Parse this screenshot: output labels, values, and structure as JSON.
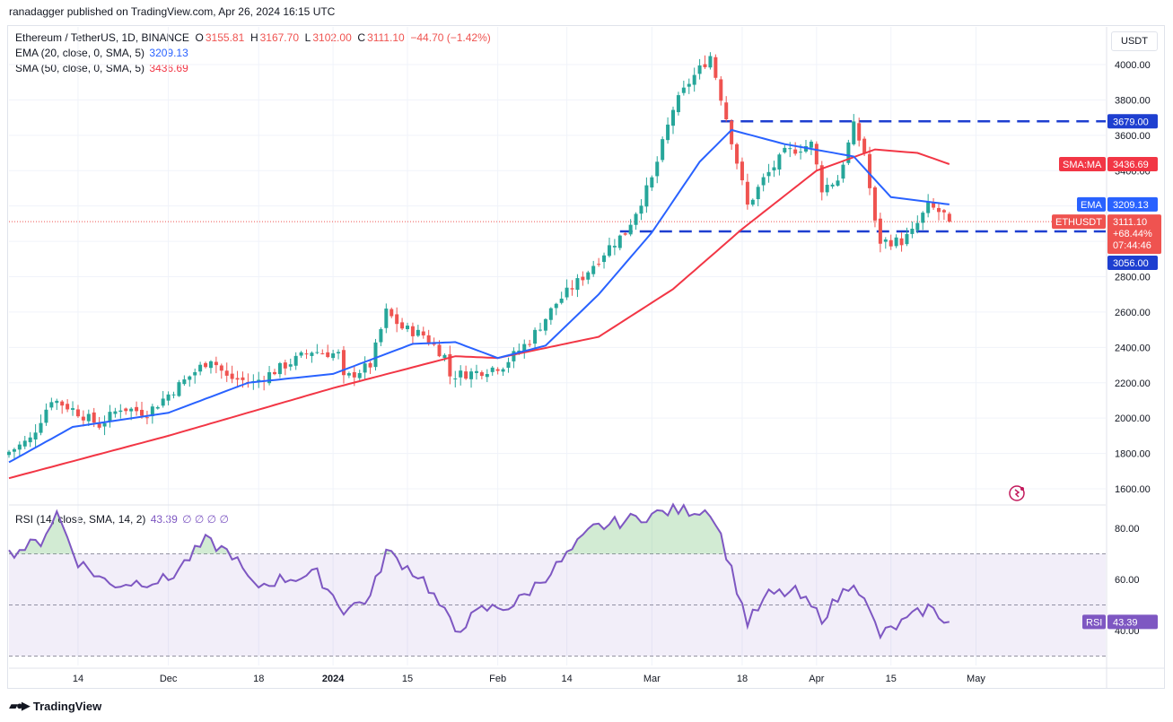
{
  "header": {
    "published": "ranadagger published on TradingView.com, Apr 26, 2024 16:15 UTC"
  },
  "symbol": {
    "name": "Ethereum / TetherUS, 1D, BINANCE",
    "o_label": "O",
    "open": "3155.81",
    "h_label": "H",
    "high": "3167.70",
    "l_label": "L",
    "low": "3102.00",
    "c_label": "C",
    "close": "3111.10",
    "change": "−44.70 (−1.42%)"
  },
  "indicators": {
    "ema_label": "EMA (20, close, 0, SMA, 5)",
    "ema_value": "3209.13",
    "sma_label": "SMA (50, close, 0, SMA, 5)",
    "sma_value": "3436.69",
    "rsi_label": "RSI (14, close, SMA, 14, 2)",
    "rsi_value": "43.39",
    "rsi_extra": "∅ ∅ ∅ ∅"
  },
  "price_axis": {
    "unit": "USDT",
    "ticks": [
      "1600.00",
      "1800.00",
      "2000.00",
      "2200.00",
      "2400.00",
      "2600.00",
      "2800.00",
      "3000.00",
      "3200.00",
      "3400.00",
      "3600.00",
      "3800.00",
      "4000.00"
    ]
  },
  "rsi_axis": {
    "ticks": [
      "40.00",
      "60.00",
      "80.00"
    ]
  },
  "x_axis": {
    "labels": [
      {
        "text": "14",
        "bold": false
      },
      {
        "text": "Dec",
        "bold": false
      },
      {
        "text": "18",
        "bold": false
      },
      {
        "text": "2024",
        "bold": true
      },
      {
        "text": "15",
        "bold": false
      },
      {
        "text": "Feb",
        "bold": false
      },
      {
        "text": "14",
        "bold": false
      },
      {
        "text": "Mar",
        "bold": false
      },
      {
        "text": "18",
        "bold": false
      },
      {
        "text": "Apr",
        "bold": false
      },
      {
        "text": "15",
        "bold": false
      },
      {
        "text": "May",
        "bold": false
      }
    ]
  },
  "tags": {
    "resistance": "3679.00",
    "support": "3056.00",
    "sma_tag_label": "SMA:MA",
    "sma_tag_value": "3436.69",
    "ema_tag_label": "EMA",
    "ema_tag_value": "3209.13",
    "sym_tag_label": "ETHUSDT",
    "sym_tag_price": "3111.10",
    "sym_tag_change": "+68.44%",
    "sym_tag_timer": "07:44:46",
    "rsi_tag_label": "RSI",
    "rsi_tag_value": "43.39"
  },
  "colors": {
    "up": "#26a69a",
    "down": "#ef5350",
    "ema": "#2962ff",
    "sma": "#f23645",
    "rsi": "#7e57c2",
    "level": "#1e3fd0",
    "grid": "#f0f3fa"
  },
  "footer": {
    "brand": "TradingView"
  },
  "chart_data": {
    "type": "candlestick",
    "title": "Ethereum / TetherUS, 1D, BINANCE",
    "ylim": [
      1500,
      4150
    ],
    "levels": [
      3679,
      3056
    ],
    "close_anchors": [
      [
        "2023-11-01",
        1810
      ],
      [
        "2023-11-05",
        1880
      ],
      [
        "2023-11-09",
        2110
      ],
      [
        "2023-11-13",
        2050
      ],
      [
        "2023-11-18",
        1960
      ],
      [
        "2023-11-22",
        2060
      ],
      [
        "2023-11-27",
        2030
      ],
      [
        "2023-12-02",
        2160
      ],
      [
        "2023-12-09",
        2340
      ],
      [
        "2023-12-12",
        2230
      ],
      [
        "2023-12-17",
        2200
      ],
      [
        "2023-12-23",
        2300
      ],
      [
        "2023-12-28",
        2380
      ],
      [
        "2024-01-02",
        2360
      ],
      [
        "2024-01-03",
        2220
      ],
      [
        "2024-01-08",
        2300
      ],
      [
        "2024-01-11",
        2600
      ],
      [
        "2024-01-14",
        2510
      ],
      [
        "2024-01-18",
        2470
      ],
      [
        "2024-01-22",
        2350
      ],
      [
        "2024-01-23",
        2240
      ],
      [
        "2024-01-28",
        2260
      ],
      [
        "2024-02-02",
        2300
      ],
      [
        "2024-02-07",
        2440
      ],
      [
        "2024-02-12",
        2650
      ],
      [
        "2024-02-17",
        2800
      ],
      [
        "2024-02-22",
        2970
      ],
      [
        "2024-02-25",
        3050
      ],
      [
        "2024-03-01",
        3350
      ],
      [
        "2024-03-05",
        3750
      ],
      [
        "2024-03-08",
        3900
      ],
      [
        "2024-03-12",
        4050
      ],
      [
        "2024-03-15",
        3700
      ],
      [
        "2024-03-19",
        3200
      ],
      [
        "2024-03-22",
        3350
      ],
      [
        "2024-03-26",
        3500
      ],
      [
        "2024-03-31",
        3550
      ],
      [
        "2024-04-02",
        3300
      ],
      [
        "2024-04-05",
        3350
      ],
      [
        "2024-04-08",
        3650
      ],
      [
        "2024-04-10",
        3500
      ],
      [
        "2024-04-12",
        3100
      ],
      [
        "2024-04-13",
        3000
      ],
      [
        "2024-04-17",
        3000
      ],
      [
        "2024-04-19",
        3050
      ],
      [
        "2024-04-22",
        3200
      ],
      [
        "2024-04-25",
        3150
      ],
      [
        "2024-04-26",
        3111
      ]
    ],
    "ema20_anchors": [
      [
        "2023-11-01",
        1750
      ],
      [
        "2023-11-13",
        1950
      ],
      [
        "2023-12-01",
        2030
      ],
      [
        "2023-12-16",
        2200
      ],
      [
        "2024-01-01",
        2250
      ],
      [
        "2024-01-16",
        2420
      ],
      [
        "2024-01-24",
        2430
      ],
      [
        "2024-02-01",
        2340
      ],
      [
        "2024-02-10",
        2410
      ],
      [
        "2024-02-20",
        2700
      ],
      [
        "2024-03-01",
        3050
      ],
      [
        "2024-03-10",
        3450
      ],
      [
        "2024-03-16",
        3630
      ],
      [
        "2024-03-26",
        3550
      ],
      [
        "2024-04-08",
        3480
      ],
      [
        "2024-04-15",
        3250
      ],
      [
        "2024-04-26",
        3209
      ]
    ],
    "sma50_anchors": [
      [
        "2023-11-01",
        1660
      ],
      [
        "2023-12-01",
        1900
      ],
      [
        "2024-01-01",
        2170
      ],
      [
        "2024-01-24",
        2350
      ],
      [
        "2024-02-01",
        2340
      ],
      [
        "2024-02-20",
        2460
      ],
      [
        "2024-03-05",
        2730
      ],
      [
        "2024-03-18",
        3070
      ],
      [
        "2024-04-01",
        3400
      ],
      [
        "2024-04-12",
        3520
      ],
      [
        "2024-04-20",
        3500
      ],
      [
        "2024-04-26",
        3437
      ]
    ],
    "rsi_anchors": [
      [
        "2023-11-01",
        70
      ],
      [
        "2023-11-07",
        75
      ],
      [
        "2023-11-10",
        86
      ],
      [
        "2023-11-14",
        67
      ],
      [
        "2023-11-20",
        58
      ],
      [
        "2023-12-01",
        60
      ],
      [
        "2023-12-08",
        75
      ],
      [
        "2023-12-13",
        70
      ],
      [
        "2023-12-17",
        57
      ],
      [
        "2023-12-22",
        60
      ],
      [
        "2023-12-29",
        62
      ],
      [
        "2024-01-03",
        48
      ],
      [
        "2024-01-08",
        53
      ],
      [
        "2024-01-11",
        71
      ],
      [
        "2024-01-18",
        60
      ],
      [
        "2024-01-24",
        40
      ],
      [
        "2024-01-29",
        48
      ],
      [
        "2024-02-04",
        50
      ],
      [
        "2024-02-12",
        65
      ],
      [
        "2024-02-19",
        80
      ],
      [
        "2024-02-27",
        84
      ],
      [
        "2024-03-05",
        87
      ],
      [
        "2024-03-12",
        87
      ],
      [
        "2024-03-14",
        77
      ],
      [
        "2024-03-19",
        43
      ],
      [
        "2024-03-23",
        54
      ],
      [
        "2024-03-28",
        55
      ],
      [
        "2024-04-02",
        45
      ],
      [
        "2024-04-08",
        60
      ],
      [
        "2024-04-13",
        38
      ],
      [
        "2024-04-18",
        44
      ],
      [
        "2024-04-22",
        49
      ],
      [
        "2024-04-26",
        43.39
      ]
    ],
    "rsi_levels": [
      70,
      50,
      30
    ]
  }
}
